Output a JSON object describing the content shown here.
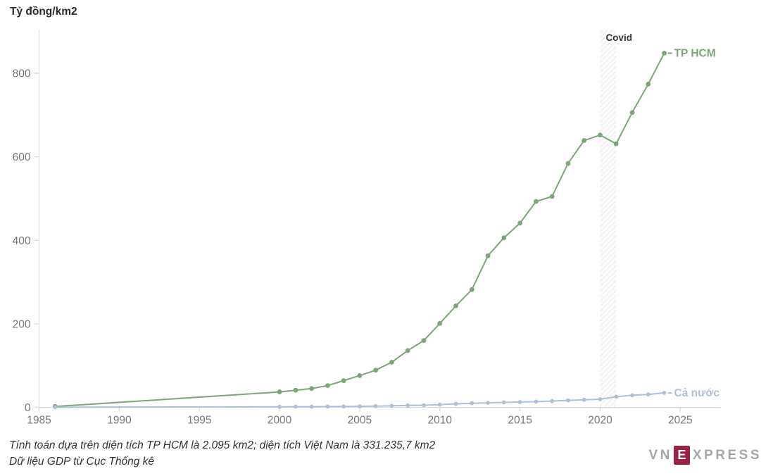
{
  "page": {
    "title": "Tỷ đồng/km2"
  },
  "footer": {
    "note1": "Tính toán dựa trên diện tích TP HCM là 2.095 km2; diện tích Việt Nam là 331.235,7 km2",
    "note2": "Dữ liệu GDP từ Cục Thống kê"
  },
  "logo": {
    "prefix": "VN",
    "e": "E",
    "suffix": "XPRESS",
    "maroon": "#9b2242",
    "gray": "#a4a7aa"
  },
  "colors": {
    "tphcm_green": "#7aa874",
    "canuoc_blue": "#a9c2da",
    "axis_line": "#dddddd",
    "tick_mark": "#dddddd",
    "tick_label": "#767676",
    "annotation_text": "#333333",
    "hatch_line": "#e3e3e3",
    "hatch_bg": "#fbfbfb"
  },
  "chart_data": {
    "type": "line",
    "title": "Tỷ đồng/km2",
    "xlabel": "",
    "ylabel": "Tỷ đồng/km2",
    "grid": false,
    "legend_position": "end-of-line",
    "xlim": [
      1985,
      2025
    ],
    "ylim": [
      0,
      905
    ],
    "xticks": [
      1985,
      1990,
      1995,
      2000,
      2005,
      2010,
      2015,
      2020,
      2025
    ],
    "yticks": [
      0,
      200,
      400,
      600,
      800
    ],
    "x": [
      1986,
      2000,
      2001,
      2002,
      2003,
      2004,
      2005,
      2006,
      2007,
      2008,
      2009,
      2010,
      2011,
      2012,
      2013,
      2014,
      2015,
      2016,
      2017,
      2018,
      2019,
      2020,
      2021,
      2022,
      2023,
      2024
    ],
    "series": [
      {
        "name": "TP HCM",
        "color": "#7aa874",
        "marker_radius": 3.4,
        "values": [
          2,
          37,
          41,
          45,
          52,
          64,
          76,
          89,
          108,
          136,
          160,
          201,
          243,
          282,
          363,
          406,
          441,
          493,
          505,
          584,
          639,
          652,
          631,
          706,
          774,
          848
        ]
      },
      {
        "name": "Cả nước",
        "color": "#a9c2da",
        "marker_radius": 2.9,
        "values": [
          0.2,
          1.3,
          1.5,
          1.6,
          1.9,
          2.2,
          2.5,
          2.9,
          3.5,
          4.5,
          5.0,
          6.5,
          8.4,
          9.8,
          10.8,
          11.9,
          12.7,
          13.6,
          15.1,
          16.7,
          18.2,
          19.4,
          25.6,
          28.8,
          30.9,
          34.8
        ]
      }
    ],
    "annotation": {
      "label": "Covid",
      "x_from": 2020,
      "x_to": 2021
    }
  }
}
